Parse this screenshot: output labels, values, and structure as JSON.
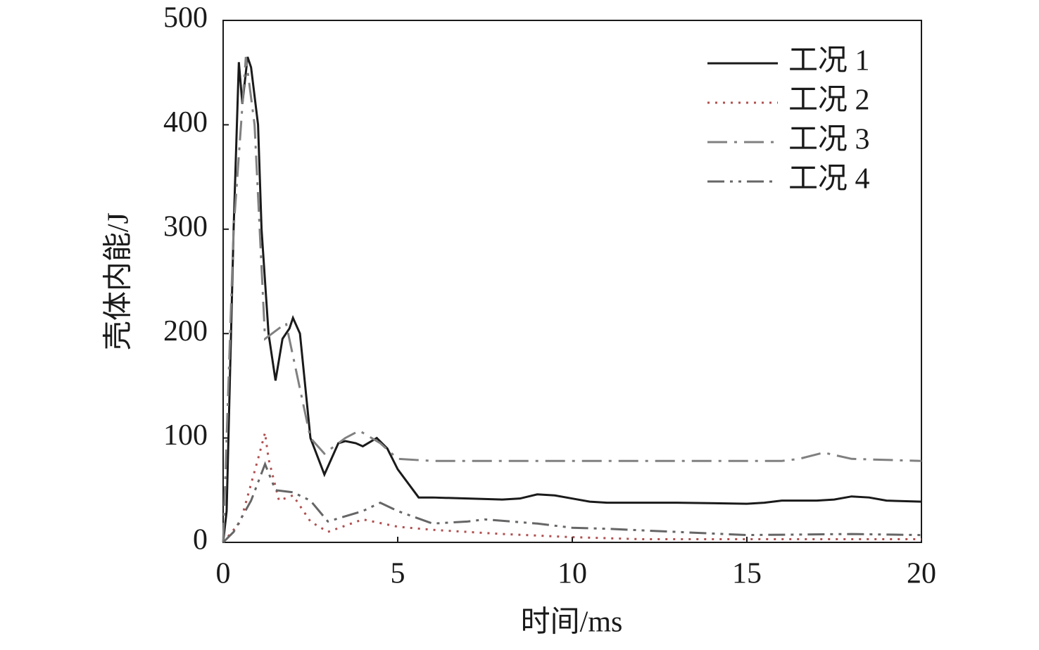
{
  "chart_data": {
    "type": "line",
    "xlabel": "时间/ms",
    "ylabel": "壳体内能/J",
    "xlim": [
      0,
      20
    ],
    "ylim": [
      0,
      500
    ],
    "xticks": [
      0,
      5,
      10,
      15,
      20
    ],
    "yticks": [
      0,
      100,
      200,
      300,
      400,
      500
    ],
    "legend": "upper right",
    "series": [
      {
        "name": "工况 1",
        "color": "#1a1a1a",
        "dash": "solid",
        "x": [
          0,
          0.1,
          0.3,
          0.45,
          0.55,
          0.7,
          0.8,
          1.0,
          1.1,
          1.3,
          1.5,
          1.7,
          1.9,
          2.0,
          2.2,
          2.5,
          2.9,
          3.3,
          3.5,
          3.8,
          4.0,
          4.4,
          4.7,
          5.0,
          5.6,
          6,
          7,
          8,
          8.5,
          9,
          9.5,
          10,
          10.5,
          11,
          13,
          15,
          15.5,
          16,
          17,
          17.5,
          18,
          18.5,
          19,
          20
        ],
        "values": [
          0,
          30,
          300,
          460,
          420,
          465,
          455,
          400,
          300,
          200,
          155,
          195,
          205,
          215,
          200,
          100,
          65,
          95,
          97,
          95,
          92,
          100,
          90,
          70,
          43,
          43,
          42,
          41,
          42,
          46,
          45,
          42,
          39,
          38,
          38,
          37,
          38,
          40,
          40,
          41,
          44,
          43,
          40,
          39
        ]
      },
      {
        "name": "工况 2",
        "color": "#b05050",
        "dash": "dotted",
        "x": [
          0,
          0.5,
          1,
          1.2,
          1.3,
          1.6,
          2,
          2.5,
          3,
          4,
          5,
          6,
          8,
          10,
          12,
          15,
          20
        ],
        "values": [
          0,
          20,
          80,
          105,
          80,
          40,
          45,
          20,
          10,
          22,
          15,
          12,
          8,
          5,
          3,
          3,
          3
        ]
      },
      {
        "name": "工况 3",
        "color": "#808080",
        "dash": "dashdot",
        "x": [
          0,
          0.3,
          0.65,
          0.9,
          1.2,
          1.8,
          2.5,
          2.9,
          3.5,
          3.9,
          4.5,
          5,
          6,
          16,
          16.5,
          17.2,
          18,
          20
        ],
        "values": [
          0,
          300,
          465,
          400,
          195,
          210,
          100,
          85,
          100,
          107,
          95,
          80,
          78,
          78,
          80,
          86,
          80,
          78
        ]
      },
      {
        "name": "工况 4",
        "color": "#666666",
        "dash": "dashdotdot",
        "x": [
          0,
          0.3,
          0.8,
          1.2,
          1.5,
          2,
          2.5,
          3,
          4,
          4.5,
          5,
          6,
          7,
          7.5,
          9,
          10,
          11,
          15,
          18,
          20
        ],
        "values": [
          0,
          10,
          40,
          75,
          50,
          48,
          40,
          20,
          30,
          38,
          30,
          18,
          20,
          22,
          18,
          14,
          13,
          7,
          8,
          7
        ]
      }
    ]
  }
}
